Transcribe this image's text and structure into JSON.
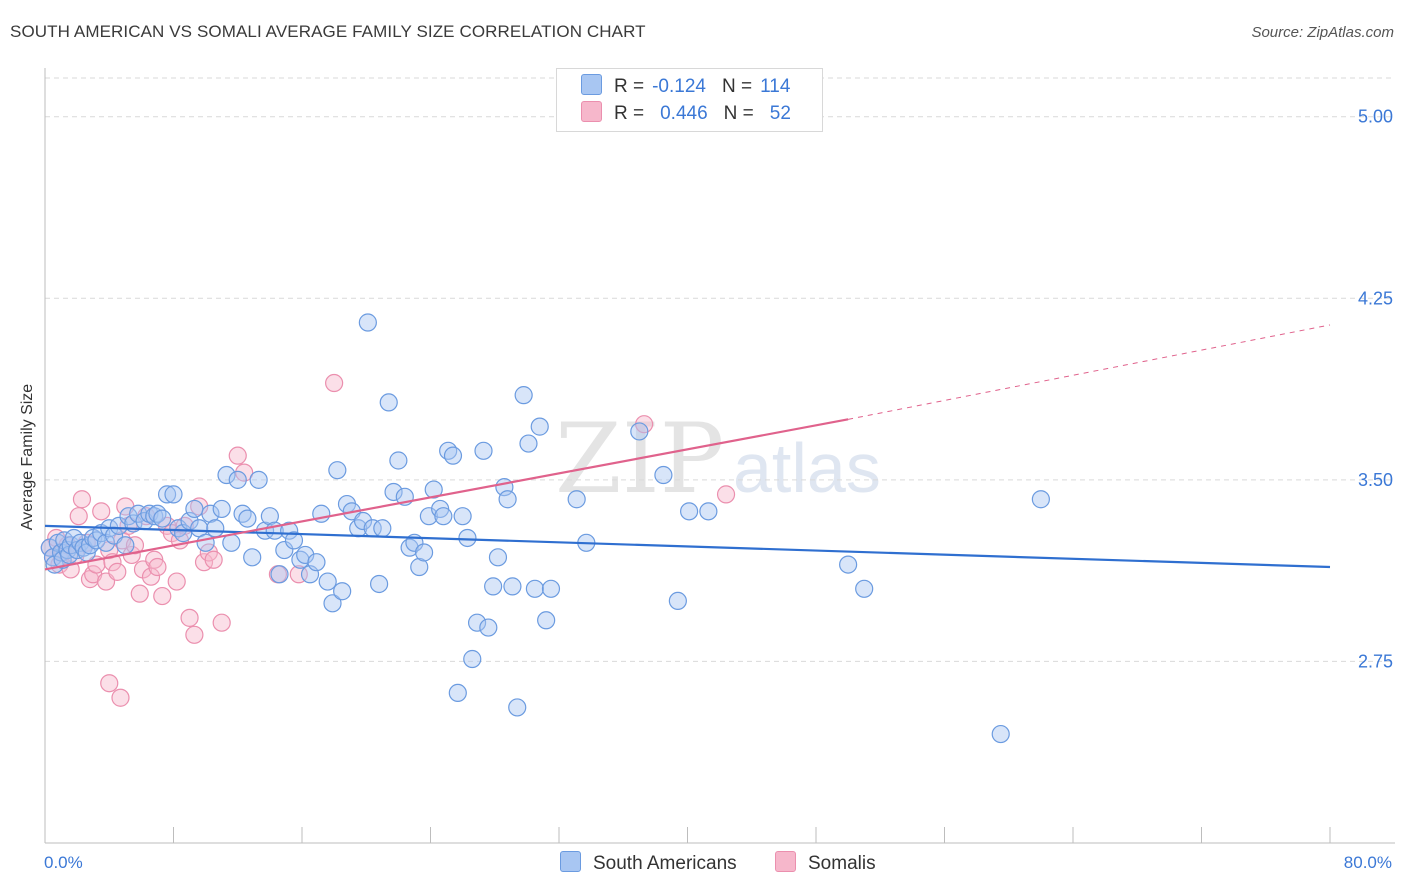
{
  "header": {
    "title": "SOUTH AMERICAN VS SOMALI AVERAGE FAMILY SIZE CORRELATION CHART",
    "source": "Source: ZipAtlas.com"
  },
  "watermark": {
    "part1": "ZIP",
    "part2": "atlas"
  },
  "legend": {
    "rows": [
      {
        "r_label": "R =",
        "r_value": "-0.124",
        "n_label": "N =",
        "n_value": "114",
        "color": "#a8c6f2"
      },
      {
        "r_label": "R =",
        "r_value": "0.446",
        "n_label": "N =",
        "n_value": "52",
        "color": "#f6b7cb"
      }
    ]
  },
  "bottom_legend": {
    "items": [
      {
        "label": "South Americans",
        "color": "#a8c6f2"
      },
      {
        "label": "Somalis",
        "color": "#f6b7cb"
      }
    ]
  },
  "axes": {
    "x_min_label": "0.0%",
    "x_max_label": "80.0%"
  },
  "colors": {
    "blue_fill": "#a8c6f2",
    "blue_stroke": "#6b9be0",
    "blue_line": "#2f6fd0",
    "pink_fill": "#f6b7cb",
    "pink_stroke": "#eb8fae",
    "pink_line": "#e0628c",
    "grid": "#d9d9d9",
    "tick_label": "#3b78d6"
  },
  "chart_data": {
    "type": "scatter",
    "title": "SOUTH AMERICAN VS SOMALI AVERAGE FAMILY SIZE CORRELATION CHART",
    "xlabel": "",
    "ylabel": "Average Family Size",
    "xlim": [
      0,
      80
    ],
    "ylim": [
      2.0,
      5.16
    ],
    "y_ticks": [
      2.75,
      3.5,
      4.25,
      5.0
    ],
    "y_tick_labels": [
      "2.75",
      "3.50",
      "4.25",
      "5.00"
    ],
    "grid": "horizontal dashed",
    "legend_position": "top-center",
    "series": [
      {
        "name": "South Americans",
        "r": -0.124,
        "n": 114,
        "trend": {
          "x0": 0,
          "y0": 3.31,
          "x1": 80,
          "y1": 3.14
        },
        "points": [
          [
            0.3,
            3.22
          ],
          [
            0.5,
            3.18
          ],
          [
            0.6,
            3.15
          ],
          [
            0.8,
            3.24
          ],
          [
            1.0,
            3.2
          ],
          [
            1.1,
            3.17
          ],
          [
            1.2,
            3.25
          ],
          [
            1.4,
            3.21
          ],
          [
            1.5,
            3.19
          ],
          [
            1.6,
            3.23
          ],
          [
            1.8,
            3.26
          ],
          [
            2.0,
            3.21
          ],
          [
            2.2,
            3.24
          ],
          [
            2.4,
            3.22
          ],
          [
            2.6,
            3.2
          ],
          [
            2.8,
            3.23
          ],
          [
            3.0,
            3.26
          ],
          [
            3.2,
            3.25
          ],
          [
            3.5,
            3.28
          ],
          [
            3.8,
            3.24
          ],
          [
            4.0,
            3.3
          ],
          [
            4.3,
            3.27
          ],
          [
            4.6,
            3.31
          ],
          [
            5.0,
            3.23
          ],
          [
            5.2,
            3.35
          ],
          [
            5.5,
            3.32
          ],
          [
            5.8,
            3.36
          ],
          [
            6.2,
            3.33
          ],
          [
            6.5,
            3.36
          ],
          [
            6.8,
            3.35
          ],
          [
            7.0,
            3.36
          ],
          [
            7.3,
            3.34
          ],
          [
            7.6,
            3.44
          ],
          [
            8.0,
            3.44
          ],
          [
            8.3,
            3.3
          ],
          [
            8.6,
            3.28
          ],
          [
            9.0,
            3.33
          ],
          [
            9.3,
            3.38
          ],
          [
            9.6,
            3.3
          ],
          [
            10.0,
            3.24
          ],
          [
            10.3,
            3.36
          ],
          [
            10.6,
            3.3
          ],
          [
            11.0,
            3.38
          ],
          [
            11.3,
            3.52
          ],
          [
            11.6,
            3.24
          ],
          [
            12.0,
            3.5
          ],
          [
            12.3,
            3.36
          ],
          [
            12.6,
            3.34
          ],
          [
            12.9,
            3.18
          ],
          [
            13.3,
            3.5
          ],
          [
            13.7,
            3.29
          ],
          [
            14.0,
            3.35
          ],
          [
            14.3,
            3.29
          ],
          [
            14.6,
            3.11
          ],
          [
            14.9,
            3.21
          ],
          [
            15.2,
            3.29
          ],
          [
            15.5,
            3.25
          ],
          [
            15.9,
            3.17
          ],
          [
            16.2,
            3.19
          ],
          [
            16.5,
            3.11
          ],
          [
            16.9,
            3.16
          ],
          [
            17.2,
            3.36
          ],
          [
            17.6,
            3.08
          ],
          [
            17.9,
            2.99
          ],
          [
            18.2,
            3.54
          ],
          [
            18.5,
            3.04
          ],
          [
            18.8,
            3.4
          ],
          [
            19.1,
            3.37
          ],
          [
            19.5,
            3.3
          ],
          [
            19.8,
            3.33
          ],
          [
            20.1,
            4.15
          ],
          [
            20.4,
            3.3
          ],
          [
            20.8,
            3.07
          ],
          [
            21.0,
            3.3
          ],
          [
            21.4,
            3.82
          ],
          [
            21.7,
            3.45
          ],
          [
            22.0,
            3.58
          ],
          [
            22.4,
            3.43
          ],
          [
            22.7,
            3.22
          ],
          [
            23.0,
            3.24
          ],
          [
            23.3,
            3.14
          ],
          [
            23.6,
            3.2
          ],
          [
            23.9,
            3.35
          ],
          [
            24.2,
            3.46
          ],
          [
            24.6,
            3.38
          ],
          [
            24.8,
            3.35
          ],
          [
            25.1,
            3.62
          ],
          [
            25.4,
            3.6
          ],
          [
            25.7,
            2.62
          ],
          [
            26.0,
            3.35
          ],
          [
            26.3,
            3.26
          ],
          [
            26.6,
            2.76
          ],
          [
            26.9,
            2.91
          ],
          [
            27.3,
            3.62
          ],
          [
            27.6,
            2.89
          ],
          [
            27.9,
            3.06
          ],
          [
            28.2,
            3.18
          ],
          [
            28.6,
            3.47
          ],
          [
            28.8,
            3.42
          ],
          [
            29.1,
            3.06
          ],
          [
            29.4,
            2.56
          ],
          [
            29.8,
            3.85
          ],
          [
            30.1,
            3.65
          ],
          [
            30.5,
            3.05
          ],
          [
            30.8,
            3.72
          ],
          [
            31.2,
            2.92
          ],
          [
            31.5,
            3.05
          ],
          [
            33.1,
            3.42
          ],
          [
            33.7,
            3.24
          ],
          [
            37.0,
            3.7
          ],
          [
            38.5,
            3.52
          ],
          [
            39.4,
            3.0
          ],
          [
            40.1,
            3.37
          ],
          [
            41.3,
            3.37
          ],
          [
            50.0,
            3.15
          ],
          [
            51.0,
            3.05
          ],
          [
            62.0,
            3.42
          ],
          [
            59.5,
            2.45
          ]
        ]
      },
      {
        "name": "Somalis",
        "r": 0.446,
        "n": 52,
        "trend": {
          "x0": 0,
          "y0": 3.13,
          "x1": 50,
          "y1": 3.75,
          "dashed_to_x": 80,
          "dashed_to_y": 4.14
        },
        "points": [
          [
            0.3,
            3.22
          ],
          [
            0.5,
            3.18
          ],
          [
            0.7,
            3.26
          ],
          [
            0.9,
            3.15
          ],
          [
            1.1,
            3.2
          ],
          [
            1.4,
            3.23
          ],
          [
            1.6,
            3.13
          ],
          [
            1.9,
            3.19
          ],
          [
            2.1,
            3.35
          ],
          [
            2.3,
            3.42
          ],
          [
            2.6,
            3.24
          ],
          [
            2.8,
            3.09
          ],
          [
            3.0,
            3.11
          ],
          [
            3.2,
            3.15
          ],
          [
            3.5,
            3.37
          ],
          [
            3.8,
            3.08
          ],
          [
            4.0,
            3.21
          ],
          [
            4.2,
            3.16
          ],
          [
            4.5,
            3.12
          ],
          [
            4.8,
            3.25
          ],
          [
            5.0,
            3.39
          ],
          [
            5.2,
            3.31
          ],
          [
            5.4,
            3.19
          ],
          [
            5.6,
            3.23
          ],
          [
            5.9,
            3.03
          ],
          [
            6.1,
            3.13
          ],
          [
            6.3,
            3.35
          ],
          [
            6.6,
            3.1
          ],
          [
            6.8,
            3.17
          ],
          [
            7.0,
            3.14
          ],
          [
            7.3,
            3.02
          ],
          [
            7.6,
            3.31
          ],
          [
            7.9,
            3.28
          ],
          [
            8.2,
            3.08
          ],
          [
            8.4,
            3.25
          ],
          [
            8.7,
            3.31
          ],
          [
            9.0,
            2.93
          ],
          [
            9.3,
            2.86
          ],
          [
            9.6,
            3.39
          ],
          [
            9.9,
            3.16
          ],
          [
            10.2,
            3.2
          ],
          [
            10.5,
            3.17
          ],
          [
            11.0,
            2.91
          ],
          [
            12.0,
            3.6
          ],
          [
            12.4,
            3.53
          ],
          [
            14.5,
            3.11
          ],
          [
            15.8,
            3.11
          ],
          [
            18.0,
            3.9
          ],
          [
            37.3,
            3.73
          ],
          [
            42.4,
            3.44
          ],
          [
            4.0,
            2.66
          ],
          [
            4.7,
            2.6
          ]
        ]
      }
    ]
  }
}
